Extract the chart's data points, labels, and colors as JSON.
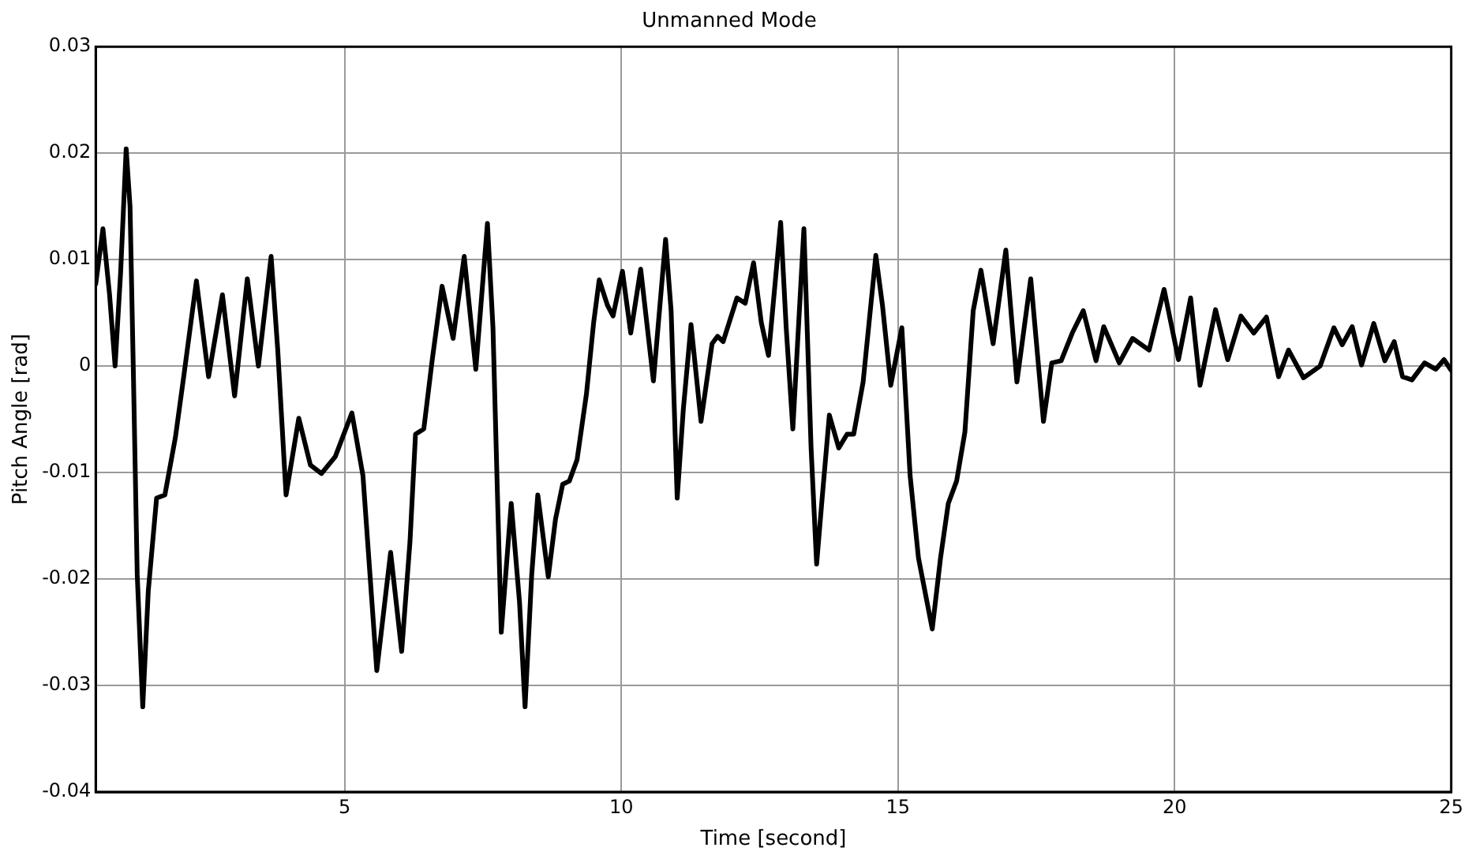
{
  "chart_data": {
    "type": "line",
    "title": "Unmanned Mode",
    "xlabel": "Time [second]",
    "ylabel": "Pitch Angle [rad]",
    "xlim": [
      0.5,
      25
    ],
    "xticks": [
      5,
      10,
      15,
      20,
      25
    ],
    "ylim": [
      -0.04,
      0.03
    ],
    "yticks": [
      -0.04,
      -0.03,
      -0.02,
      -0.01,
      0,
      0.01,
      0.02,
      0.03
    ],
    "grid": true,
    "legend": false,
    "marker": "none",
    "line_style": "solid",
    "series": [
      {
        "color": "#000000",
        "x": [
          0.5,
          0.63,
          0.75,
          0.85,
          0.95,
          1.05,
          1.12,
          1.18,
          1.25,
          1.35,
          1.45,
          1.6,
          1.75,
          1.94,
          2.09,
          2.32,
          2.54,
          2.79,
          3.01,
          3.24,
          3.44,
          3.67,
          3.79,
          3.94,
          4.17,
          4.38,
          4.58,
          4.83,
          5.13,
          5.33,
          5.58,
          5.83,
          6.03,
          6.18,
          6.28,
          6.43,
          6.58,
          6.76,
          6.96,
          7.16,
          7.37,
          7.58,
          7.68,
          7.76,
          7.83,
          8.01,
          8.16,
          8.26,
          8.38,
          8.49,
          8.68,
          8.81,
          8.94,
          9.06,
          9.2,
          9.37,
          9.5,
          9.6,
          9.75,
          9.85,
          10.02,
          10.17,
          10.35,
          10.58,
          10.8,
          10.9,
          11.01,
          11.12,
          11.26,
          11.44,
          11.64,
          11.74,
          11.84,
          12.09,
          12.24,
          12.39,
          12.53,
          12.66,
          12.88,
          12.98,
          13.1,
          13.3,
          13.43,
          13.53,
          13.63,
          13.76,
          13.93,
          14.08,
          14.2,
          14.37,
          14.6,
          14.72,
          14.87,
          15.07,
          15.22,
          15.37,
          15.62,
          15.77,
          15.91,
          16.06,
          16.21,
          16.36,
          16.5,
          16.72,
          16.95,
          17.15,
          17.4,
          17.63,
          17.78,
          17.95,
          18.15,
          18.35,
          18.58,
          18.72,
          19.0,
          19.24,
          19.54,
          19.81,
          20.07,
          20.29,
          20.46,
          20.74,
          20.96,
          21.2,
          21.43,
          21.66,
          21.88,
          22.06,
          22.33,
          22.63,
          22.88,
          23.03,
          23.21,
          23.38,
          23.6,
          23.8,
          23.97,
          24.12,
          24.29,
          24.52,
          24.72,
          24.87,
          25
        ],
        "values": [
          0.0077,
          0.0129,
          0.0067,
          0,
          0.0088,
          0.0204,
          0.015,
          -0.0005,
          -0.0196,
          -0.032,
          -0.0211,
          -0.0124,
          -0.0121,
          -0.0067,
          -0.001,
          0.008,
          -0.001,
          0.0067,
          -0.0028,
          0.0082,
          0,
          0.0103,
          0.0015,
          -0.0121,
          -0.0049,
          -0.0093,
          -0.0101,
          -0.0085,
          -0.0044,
          -0.0103,
          -0.0286,
          -0.0175,
          -0.0268,
          -0.0165,
          -0.0064,
          -0.0059,
          0.0005,
          0.0075,
          0.0026,
          0.0103,
          -0.0003,
          0.0134,
          0.0036,
          -0.0119,
          -0.025,
          -0.0129,
          -0.0222,
          -0.032,
          -0.0196,
          -0.0121,
          -0.0198,
          -0.0144,
          -0.0111,
          -0.0108,
          -0.0088,
          -0.0026,
          0.0041,
          0.0081,
          0.0057,
          0.0047,
          0.0089,
          0.0031,
          0.0091,
          -0.0014,
          0.0119,
          0.0052,
          -0.0124,
          -0.0041,
          0.0039,
          -0.0052,
          0.0021,
          0.0028,
          0.0023,
          0.0064,
          0.0059,
          0.0097,
          0.0041,
          0.001,
          0.0135,
          0.0036,
          -0.0059,
          0.0129,
          -0.0077,
          -0.0186,
          -0.0124,
          -0.0046,
          -0.0077,
          -0.0064,
          -0.0064,
          -0.0015,
          0.0104,
          0.0057,
          -0.0018,
          0.0036,
          -0.0103,
          -0.018,
          -0.0247,
          -0.018,
          -0.0129,
          -0.0108,
          -0.0062,
          0.0052,
          0.009,
          0.0021,
          0.0109,
          -0.0015,
          0.0082,
          -0.0052,
          0.0003,
          0.0005,
          0.0031,
          0.0052,
          0.0005,
          0.0037,
          0.0003,
          0.0026,
          0.0015,
          0.0072,
          0.0006,
          0.0064,
          -0.0018,
          0.0053,
          0.0006,
          0.0047,
          0.0031,
          0.0046,
          -0.001,
          0.0015,
          -0.0011,
          0,
          0.0036,
          0.002,
          0.0037,
          0.0001,
          0.004,
          0.0005,
          0.0023,
          -0.001,
          -0.0013,
          0.0003,
          -0.0003,
          0.0006,
          -0.0004
        ]
      }
    ]
  }
}
